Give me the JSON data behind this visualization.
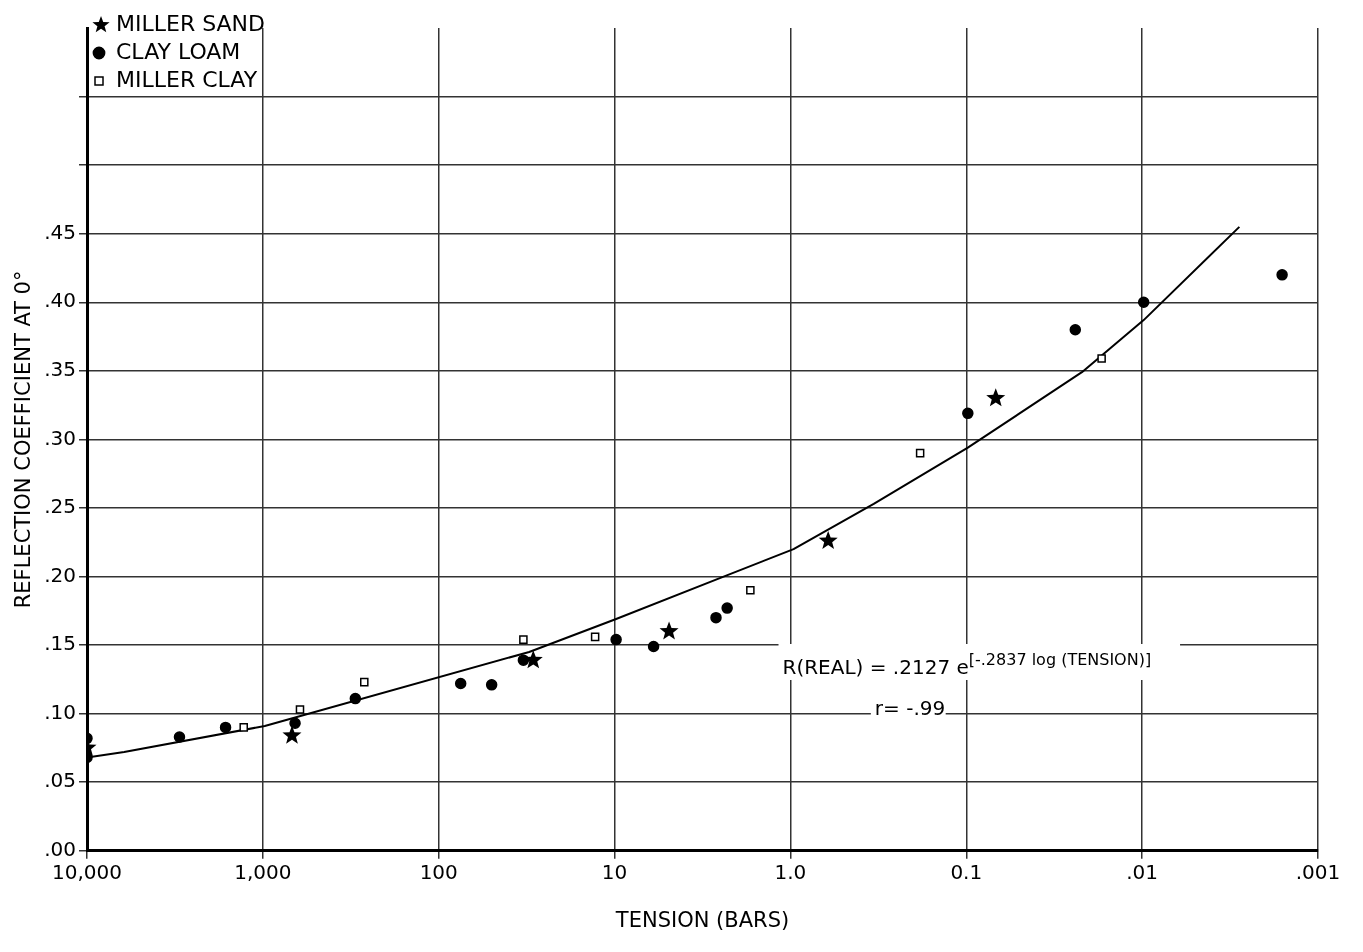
{
  "chart_data": {
    "type": "scatter",
    "xlabel": "TENSION (BARS)",
    "ylabel": "REFLECTION COEFFICIENT AT 0°",
    "log": "x",
    "xlim": [
      10000,
      0.001
    ],
    "xticks": [
      {
        "value": 10000,
        "label": "10,000"
      },
      {
        "value": 1000,
        "label": "1,000"
      },
      100,
      10,
      {
        "value": 1,
        "label": "1.0"
      },
      0.1,
      {
        "value": 0.01,
        "label": ".01"
      },
      {
        "value": 0.001,
        "label": ".001"
      }
    ],
    "ylim": [
      0,
      0.6
    ],
    "yticks": [
      {
        "value": 0,
        "label": ".00"
      },
      {
        "value": 0.05,
        "label": ".05"
      },
      {
        "value": 0.1,
        "label": ".10"
      },
      {
        "value": 0.15,
        "label": ".15"
      },
      {
        "value": 0.2,
        "label": ".20"
      },
      {
        "value": 0.25,
        "label": ".25"
      },
      {
        "value": 0.3,
        "label": ".30"
      },
      {
        "value": 0.35,
        "label": ".35"
      },
      {
        "value": 0.4,
        "label": ".40"
      },
      {
        "value": 0.45,
        "label": ".45"
      },
      {
        "value": 0.5,
        "label": null
      },
      {
        "value": 0.55,
        "label": null
      }
    ],
    "grid": true,
    "legend": "top left",
    "series": [
      {
        "name": "MILLER SAND",
        "color": "#000000",
        "marker": "star",
        "x": [
          10000,
          683,
          29,
          4.9,
          0.61,
          0.068
        ],
        "values": [
          0.075,
          0.084,
          0.139,
          0.16,
          0.226,
          0.33
        ]
      },
      {
        "name": "CLAY LOAM",
        "color": "#000000",
        "marker": "circle",
        "x": [
          10000,
          10000,
          2980,
          1630,
          656,
          298,
          75,
          50,
          33,
          9.8,
          6.0,
          2.65,
          2.29,
          0.098,
          0.024,
          0.0098,
          0.0016
        ],
        "values": [
          0.082,
          0.068,
          0.083,
          0.09,
          0.093,
          0.111,
          0.122,
          0.121,
          0.139,
          0.154,
          0.149,
          0.17,
          0.177,
          0.319,
          0.38,
          0.4,
          0.42
        ]
      },
      {
        "name": "MILLER CLAY",
        "color": "#000000",
        "marker": "square",
        "x": [
          1285,
          615,
          265,
          33,
          12.9,
          1.69,
          0.183,
          0.017
        ],
        "values": [
          0.09,
          0.103,
          0.123,
          0.154,
          0.156,
          0.19,
          0.29,
          0.359
        ]
      },
      {
        "type": "line",
        "color": "#000000",
        "marker": "none",
        "x": [
          10000,
          6150,
          975,
          30.6,
          9.8,
          2.5,
          0.96,
          0.336,
          0.098,
          0.022,
          0.0098,
          0.0028
        ],
        "values": [
          0.068,
          0.072,
          0.091,
          0.145,
          0.169,
          0.199,
          0.22,
          0.253,
          0.294,
          0.349,
          0.387,
          0.455
        ]
      }
    ],
    "annotations": [
      "R(REAL) = .2127 e$^{[-.2837 log (TENSION)]}$",
      "r= -.99"
    ]
  }
}
